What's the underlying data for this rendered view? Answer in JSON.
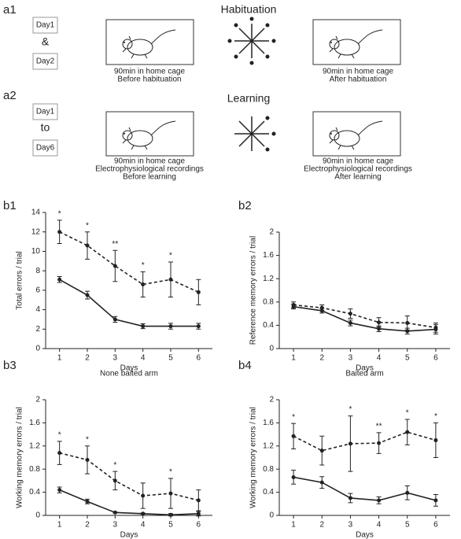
{
  "figure": {
    "a1": {
      "label": "a1",
      "title": "Habituation",
      "days": [
        "Day1",
        "&",
        "Day2"
      ],
      "left_caption": [
        "90min in home cage",
        "Before habituation"
      ],
      "right_caption": [
        "90min in home cage",
        "After habituation"
      ]
    },
    "a2": {
      "label": "a2",
      "title": "Learning",
      "days": [
        "Day1",
        "to",
        "Day6"
      ],
      "left_caption": [
        "90min in home cage",
        "Electrophysiological recordings",
        "Before learning"
      ],
      "right_caption": [
        "90min in home cage",
        "Electrophysiological recordings",
        "After learning"
      ]
    }
  },
  "chart_data": [
    {
      "type": "line",
      "panel_label": "b1",
      "x_label": "Days",
      "y_label": "Total errors / trial",
      "x": [
        1,
        2,
        3,
        4,
        5,
        6
      ],
      "xlim": [
        0.5,
        6.5
      ],
      "xticks": [
        1,
        2,
        3,
        4,
        5,
        6
      ],
      "ylim": [
        0,
        14
      ],
      "yticks": [
        0,
        2,
        4,
        6,
        8,
        10,
        12,
        14
      ],
      "series": [
        {
          "color": "#222222",
          "dashed": true,
          "values": [
            12.0,
            10.6,
            8.5,
            6.6,
            7.1,
            5.8
          ],
          "errors": [
            1.2,
            1.4,
            1.6,
            1.3,
            1.8,
            1.3
          ]
        },
        {
          "color": "#222222",
          "dashed": false,
          "values": [
            7.1,
            5.5,
            3.0,
            2.3,
            2.3,
            2.3
          ],
          "errors": [
            0.3,
            0.4,
            0.3,
            0.25,
            0.3,
            0.3
          ]
        }
      ],
      "stars": [
        "*",
        "*",
        "**",
        "*",
        "*",
        null
      ]
    },
    {
      "type": "line",
      "panel_label": "b2",
      "x_label": "Days",
      "y_label": "Reference memory errors / trial",
      "x": [
        1,
        2,
        3,
        4,
        5,
        6
      ],
      "xlim": [
        0.5,
        6.5
      ],
      "xticks": [
        1,
        2,
        3,
        4,
        5,
        6
      ],
      "ylim": [
        0,
        2
      ],
      "yticks": [
        0,
        0.4,
        0.8,
        1.2,
        1.6,
        2
      ],
      "series": [
        {
          "color": "#222222",
          "dashed": true,
          "values": [
            0.75,
            0.7,
            0.6,
            0.45,
            0.44,
            0.36
          ],
          "errors": [
            0.05,
            0.05,
            0.08,
            0.08,
            0.12,
            0.08
          ]
        },
        {
          "color": "#222222",
          "dashed": false,
          "values": [
            0.72,
            0.65,
            0.44,
            0.34,
            0.3,
            0.33
          ],
          "errors": [
            0.04,
            0.04,
            0.05,
            0.05,
            0.05,
            0.08
          ]
        }
      ]
    },
    {
      "type": "line",
      "panel_label": "b3",
      "title": "None baited arm",
      "x_label": "Days",
      "y_label": "Working  memory  errors / trial",
      "x": [
        1,
        2,
        3,
        4,
        5,
        6
      ],
      "xlim": [
        0.5,
        6.5
      ],
      "xticks": [
        1,
        2,
        3,
        4,
        5,
        6
      ],
      "ylim": [
        0,
        2
      ],
      "yticks": [
        0,
        0.4,
        0.8,
        1.2,
        1.6,
        2
      ],
      "series": [
        {
          "color": "#222222",
          "dashed": true,
          "values": [
            1.08,
            0.96,
            0.6,
            0.34,
            0.38,
            0.26
          ],
          "errors": [
            0.2,
            0.24,
            0.16,
            0.22,
            0.26,
            0.18
          ]
        },
        {
          "color": "#222222",
          "dashed": false,
          "values": [
            0.44,
            0.24,
            0.05,
            0.03,
            0.01,
            0.03
          ],
          "errors": [
            0.05,
            0.04,
            0.01,
            0.01,
            0.02,
            0.04
          ]
        }
      ],
      "stars": [
        "*",
        "*",
        "*",
        null,
        "*",
        null
      ]
    },
    {
      "type": "line",
      "panel_label": "b4",
      "title": "Baited arm",
      "x_label": "Days",
      "y_label": "Working  memory  errors / trial",
      "x": [
        1,
        2,
        3,
        4,
        5,
        6
      ],
      "xlim": [
        0.5,
        6.5
      ],
      "xticks": [
        1,
        2,
        3,
        4,
        5,
        6
      ],
      "ylim": [
        0,
        2
      ],
      "yticks": [
        0,
        0.4,
        0.8,
        1.2,
        1.6,
        2
      ],
      "series": [
        {
          "color": "#222222",
          "dashed": true,
          "values": [
            1.37,
            1.12,
            1.24,
            1.25,
            1.44,
            1.3
          ],
          "errors": [
            0.22,
            0.25,
            0.48,
            0.18,
            0.22,
            0.3
          ]
        },
        {
          "color": "#222222",
          "dashed": false,
          "values": [
            0.66,
            0.57,
            0.3,
            0.26,
            0.39,
            0.26
          ],
          "errors": [
            0.12,
            0.1,
            0.08,
            0.06,
            0.12,
            0.1
          ]
        }
      ],
      "stars": [
        "*",
        null,
        "*",
        "**",
        "*",
        "*"
      ]
    }
  ]
}
